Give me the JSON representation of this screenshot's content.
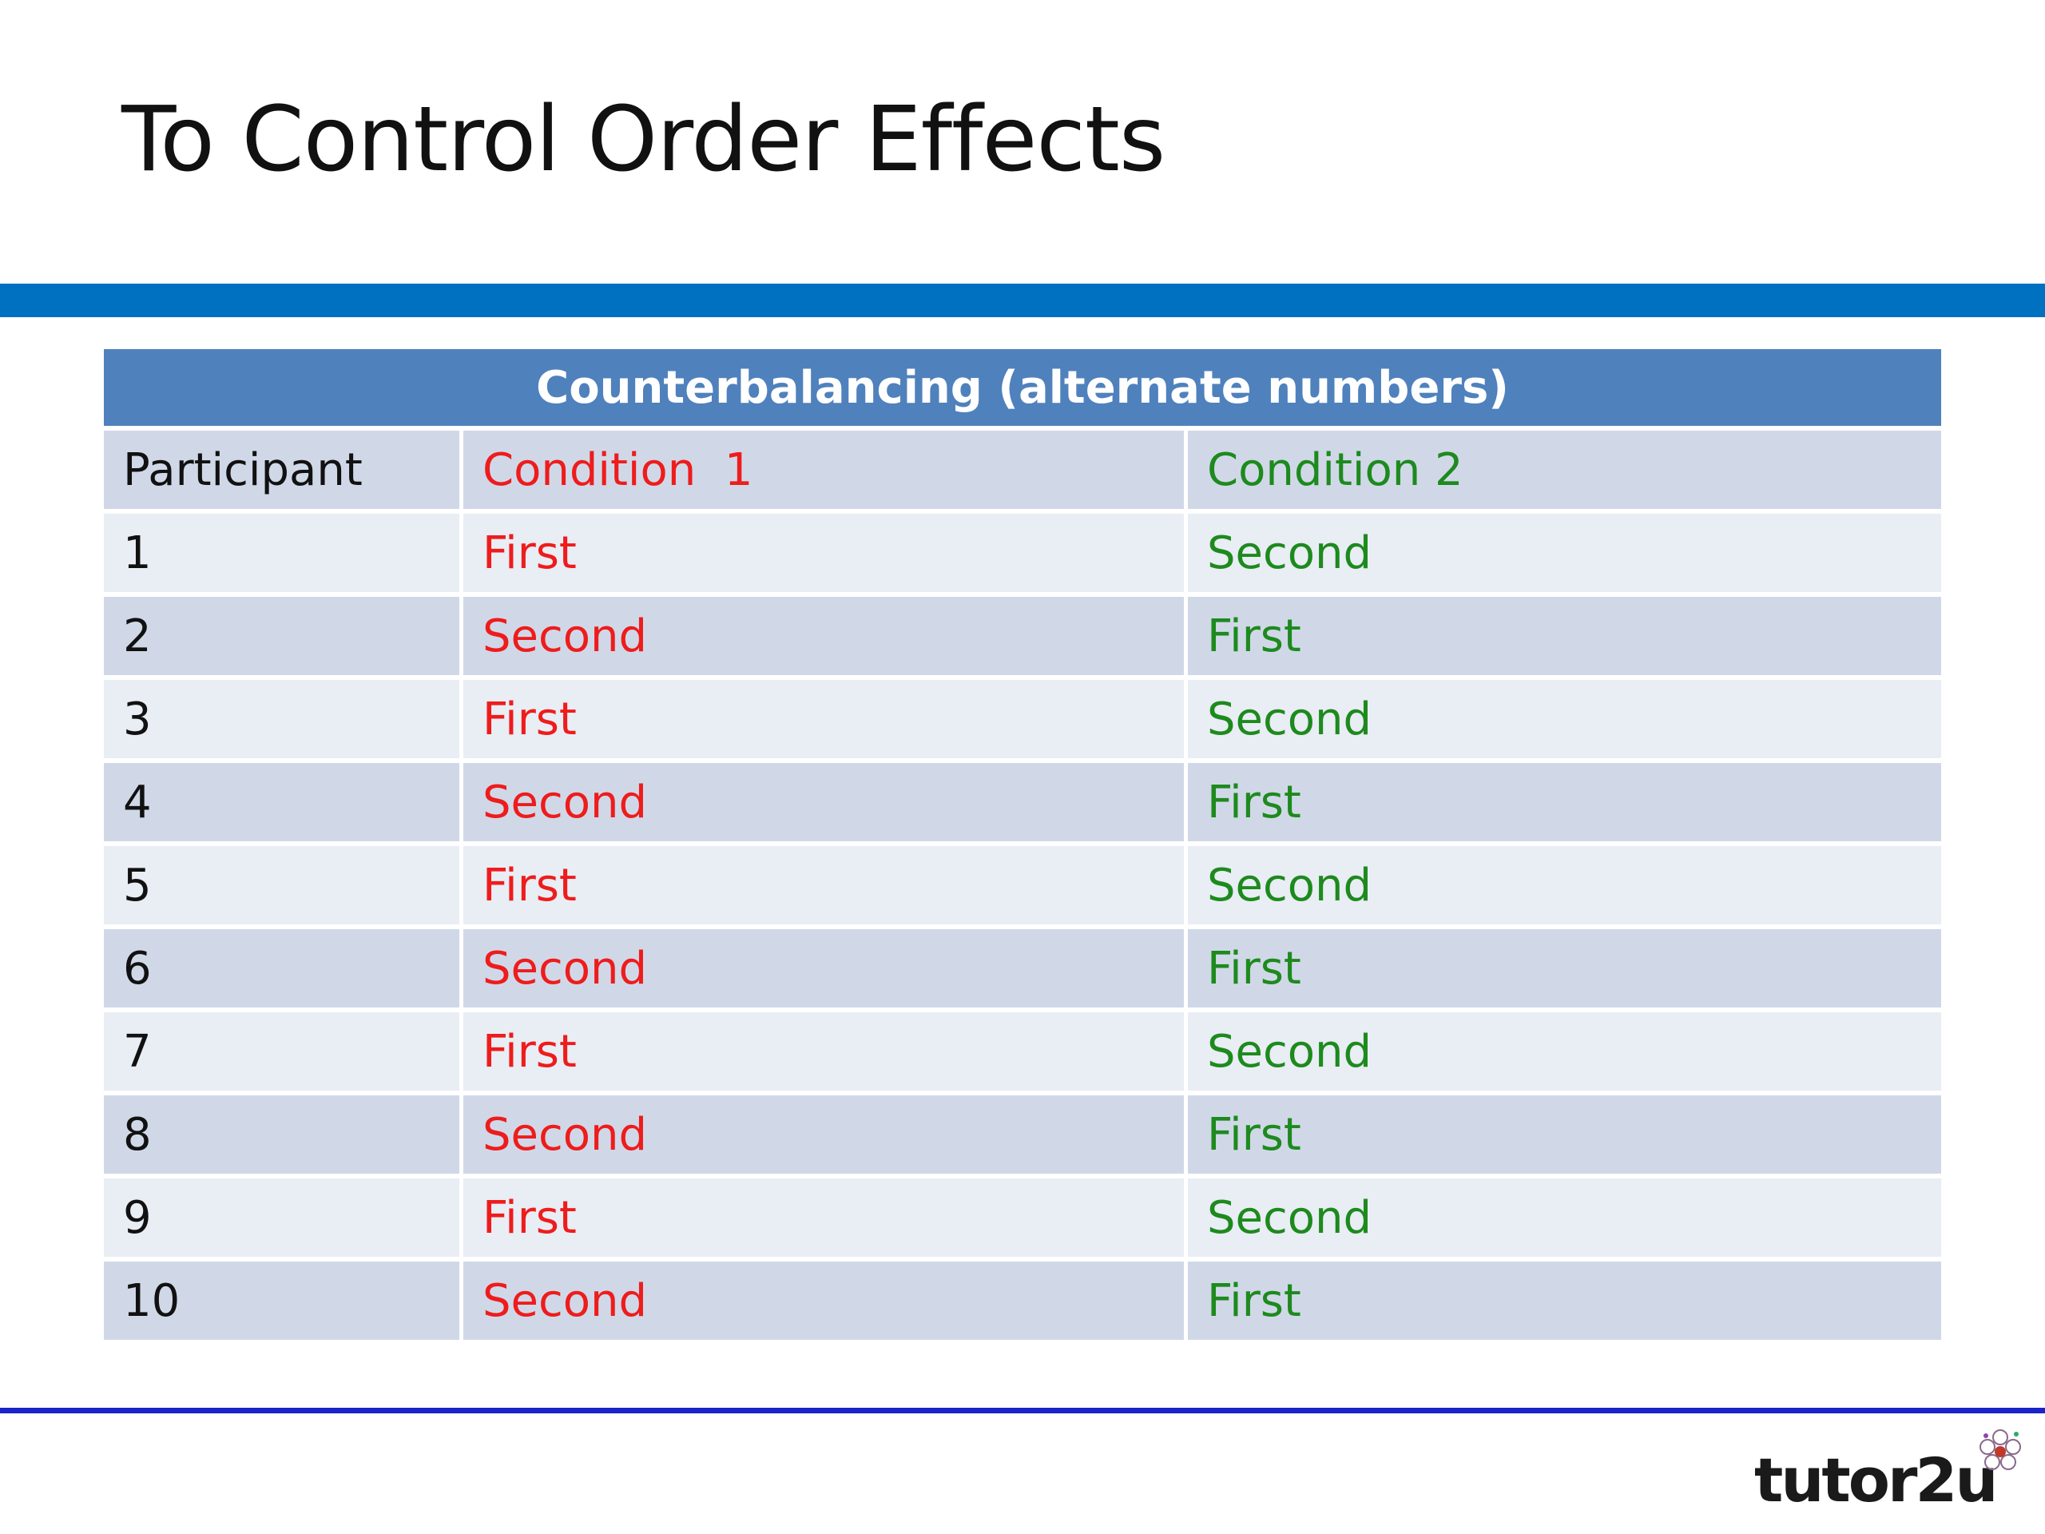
{
  "slide": {
    "title": "To Control Order Effects"
  },
  "table": {
    "caption": "Counterbalancing (alternate numbers)",
    "columns": [
      "Participant",
      "Condition  1",
      "Condition 2"
    ],
    "rows": [
      [
        "1",
        "First",
        "Second"
      ],
      [
        "2",
        "Second",
        "First"
      ],
      [
        "3",
        "First",
        "Second"
      ],
      [
        "4",
        "Second",
        "First"
      ],
      [
        "5",
        "First",
        "Second"
      ],
      [
        "6",
        "Second",
        "First"
      ],
      [
        "7",
        "First",
        "Second"
      ],
      [
        "8",
        "Second",
        "First"
      ],
      [
        "9",
        "First",
        "Second"
      ],
      [
        "10",
        "Second",
        "First"
      ]
    ]
  },
  "colors": {
    "accent_bar": "#0070c0",
    "table_header": "#4f81bd",
    "condition_1": "#ee1c1c",
    "condition_2": "#1d8a1d",
    "footer_line": "#1a24c8"
  },
  "logo": {
    "text": "tutor2u",
    "icon": "flower-icon"
  }
}
